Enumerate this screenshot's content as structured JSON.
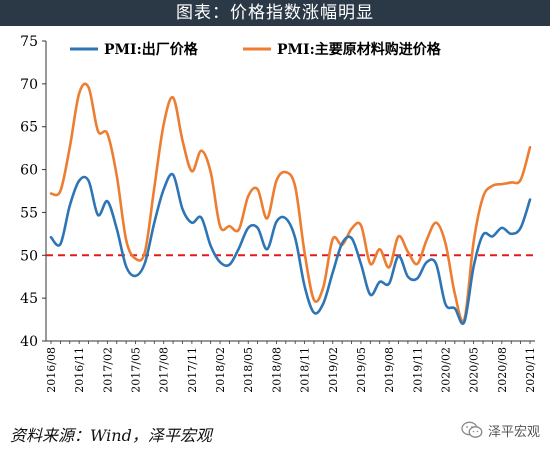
{
  "header": {
    "title": "图表：价格指数涨幅明显"
  },
  "footer": {
    "source": "资料来源：Wind，泽平宏观",
    "watermark_text": "泽平宏观",
    "watermark_icon": "wechat-icon"
  },
  "chart_data": {
    "type": "line",
    "title": "",
    "xlabel": "",
    "ylabel": "",
    "ylim": [
      40,
      75
    ],
    "yticks": [
      40,
      45,
      50,
      55,
      60,
      65,
      70,
      75
    ],
    "grid": false,
    "legend": "top",
    "reference_line": {
      "value": 50,
      "color": "#e31a1c",
      "style": "dashed"
    },
    "x": [
      "2016/08",
      "2016/09",
      "2016/10",
      "2016/11",
      "2016/12",
      "2017/01",
      "2017/02",
      "2017/03",
      "2017/04",
      "2017/05",
      "2017/06",
      "2017/07",
      "2017/08",
      "2017/09",
      "2017/10",
      "2017/11",
      "2017/12",
      "2018/01",
      "2018/02",
      "2018/03",
      "2018/04",
      "2018/05",
      "2018/06",
      "2018/07",
      "2018/08",
      "2018/09",
      "2018/10",
      "2018/11",
      "2018/12",
      "2019/01",
      "2019/02",
      "2019/03",
      "2019/04",
      "2019/05",
      "2019/06",
      "2019/07",
      "2019/08",
      "2019/09",
      "2019/10",
      "2019/11",
      "2019/12",
      "2020/01",
      "2020/02",
      "2020/03",
      "2020/04",
      "2020/05",
      "2020/06",
      "2020/07",
      "2020/08",
      "2020/09",
      "2020/10",
      "2020/11"
    ],
    "xtick_labels": [
      "2016/08",
      "2016/11",
      "2017/02",
      "2017/05",
      "2017/08",
      "2017/11",
      "2018/02",
      "2018/05",
      "2018/08",
      "2018/11",
      "2019/02",
      "2019/05",
      "2019/08",
      "2019/11",
      "2020/02",
      "2020/05",
      "2020/08",
      "2020/11"
    ],
    "series": [
      {
        "name": "PMI:出厂价格",
        "color": "#2e75b6",
        "values": [
          52.1,
          51.3,
          55.8,
          58.7,
          58.7,
          54.7,
          56.3,
          53.1,
          48.7,
          47.6,
          49.1,
          53.8,
          57.7,
          59.4,
          55.4,
          53.8,
          54.4,
          51.1,
          49.2,
          48.9,
          50.8,
          53.2,
          53.2,
          50.7,
          53.9,
          54.3,
          52.0,
          46.4,
          43.3,
          44.4,
          48.0,
          51.4,
          52.0,
          49.0,
          45.4,
          46.9,
          46.7,
          49.9,
          47.5,
          47.3,
          49.2,
          49.0,
          44.3,
          43.8,
          42.2,
          48.7,
          52.4,
          52.2,
          53.2,
          52.5,
          53.2,
          56.5
        ]
      },
      {
        "name": "PMI:主要原材料购进价格",
        "color": "#ed7d31",
        "values": [
          57.2,
          57.5,
          62.6,
          68.9,
          69.6,
          64.5,
          64.2,
          59.3,
          51.8,
          49.6,
          50.4,
          57.9,
          65.3,
          68.4,
          63.4,
          59.8,
          62.2,
          59.7,
          53.4,
          53.4,
          53.0,
          56.9,
          57.7,
          54.3,
          58.7,
          59.7,
          58.0,
          50.3,
          44.8,
          46.3,
          51.9,
          51.2,
          53.1,
          53.5,
          49.0,
          50.7,
          48.6,
          52.2,
          50.4,
          49.0,
          51.8,
          53.8,
          51.4,
          45.5,
          42.5,
          51.6,
          56.8,
          58.1,
          58.3,
          58.5,
          58.8,
          62.6
        ]
      }
    ]
  }
}
